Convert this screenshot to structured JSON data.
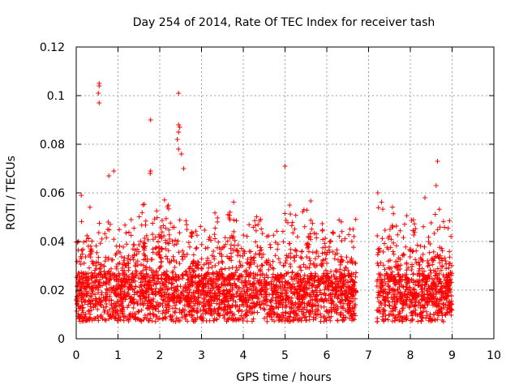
{
  "chart_data": {
    "type": "scatter",
    "title": "Day 254 of 2014, Rate Of TEC Index for receiver tash",
    "xlabel": "GPS time / hours",
    "ylabel": "ROTI / TECUs",
    "xlim": [
      0,
      10
    ],
    "ylim": [
      0,
      0.12
    ],
    "xticks": [
      0,
      1,
      2,
      3,
      4,
      5,
      6,
      7,
      8,
      9,
      10
    ],
    "xtick_labels": [
      "0",
      "1",
      "2",
      "3",
      "4",
      "5",
      "6",
      "7",
      "8",
      "9",
      "10"
    ],
    "yticks": [
      0,
      0.02,
      0.04,
      0.06,
      0.08,
      0.1,
      0.12
    ],
    "ytick_labels": [
      "0",
      "0.02",
      "0.04",
      "0.06",
      "0.08",
      "0.1",
      "0.12"
    ],
    "grid": true,
    "marker": "+",
    "color": "#ff0000",
    "series": [
      {
        "name": "ROTI",
        "segments": [
          [
            0,
            2.1
          ],
          [
            2.1,
            6.7
          ],
          [
            7.2,
            9.0
          ]
        ],
        "distribution": {
          "base_mean": 0.015,
          "typical_max": 0.06,
          "min": 0.003
        },
        "notable_points": [
          {
            "x": 0.55,
            "y": 0.105
          },
          {
            "x": 0.55,
            "y": 0.104
          },
          {
            "x": 0.53,
            "y": 0.101
          },
          {
            "x": 0.55,
            "y": 0.097
          },
          {
            "x": 1.78,
            "y": 0.09
          },
          {
            "x": 2.45,
            "y": 0.101
          },
          {
            "x": 2.45,
            "y": 0.088
          },
          {
            "x": 2.48,
            "y": 0.087
          },
          {
            "x": 2.45,
            "y": 0.085
          },
          {
            "x": 2.42,
            "y": 0.082
          },
          {
            "x": 2.45,
            "y": 0.078
          },
          {
            "x": 2.52,
            "y": 0.076
          },
          {
            "x": 2.57,
            "y": 0.07
          },
          {
            "x": 1.78,
            "y": 0.069
          },
          {
            "x": 1.77,
            "y": 0.068
          },
          {
            "x": 0.9,
            "y": 0.069
          },
          {
            "x": 0.78,
            "y": 0.067
          },
          {
            "x": 5.0,
            "y": 0.071
          },
          {
            "x": 8.65,
            "y": 0.073
          },
          {
            "x": 8.62,
            "y": 0.063
          },
          {
            "x": 0.12,
            "y": 0.059
          },
          {
            "x": 7.22,
            "y": 0.06
          },
          {
            "x": 8.35,
            "y": 0.058
          }
        ]
      }
    ]
  }
}
